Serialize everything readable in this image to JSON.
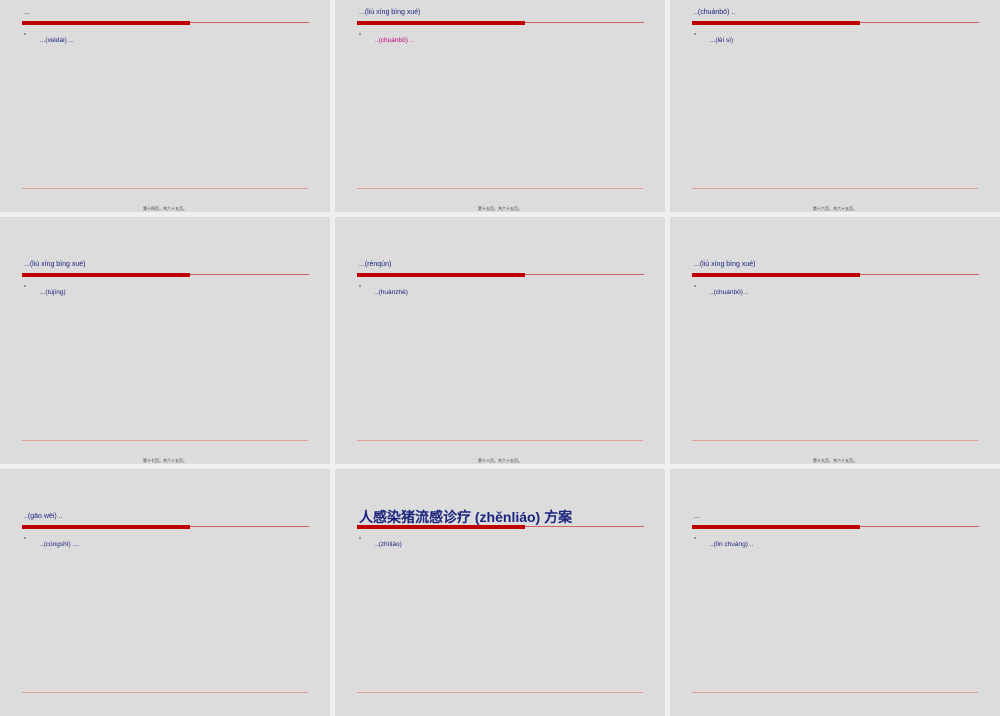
{
  "slides": [
    {
      "title": "...",
      "body": "...(xiédài) ...",
      "footer": "第十四页，共六十五页。"
    },
    {
      "title": "...(liú xíng bìng xué)",
      "body": "..(chuánbō) ..",
      "body_color": "#c0007a",
      "footer": "第十五页，共六十五页。"
    },
    {
      "title": "..(chuánbō) ..",
      "body": "...(lèi sì)",
      "footer": "第十六页，共六十五页。"
    },
    {
      "title": "...(liú xíng bìng xué)",
      "body": "...(tújìng)",
      "footer": "第十七页，共六十五页。"
    },
    {
      "title": "...(rénqún)",
      "body": "..(huànzhě)",
      "footer": "第十八页，共六十五页。"
    },
    {
      "title": "...(liú xíng bìng xué)",
      "body": "..(chuánbō) ..",
      "footer": "第十九页，共六十五页。"
    },
    {
      "title": "..(gāo wēi) ..",
      "body": "..(cóngshì) ...."
    },
    {
      "title": "人感染猪流感诊疗 (zhěnliáo) 方案",
      "title_size": "large",
      "body": "..(zhìliáo)"
    },
    {
      "title": "...",
      "body": "..(lín chuáng) .."
    }
  ]
}
